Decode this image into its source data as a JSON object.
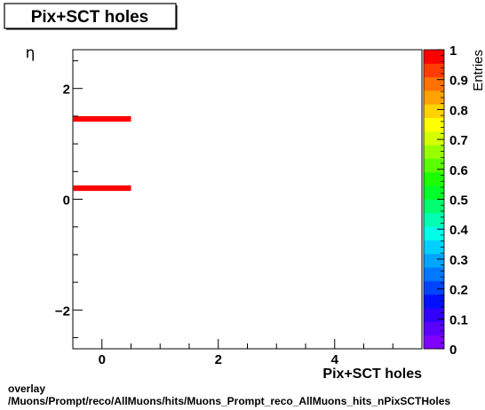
{
  "title": "Pix+SCT holes",
  "footer": {
    "line1": "overlay",
    "line2": "/Muons/Prompt/reco/AllMuons/hits/Muons_Prompt_reco_AllMuons_hits_nPixSCTHoles"
  },
  "chart_data": {
    "type": "heatmap",
    "xlabel": "Pix+SCT holes",
    "ylabel": "η",
    "zlabel": "Entries",
    "xlim": [
      -0.5,
      5.5
    ],
    "ylim": [
      -2.7,
      2.7
    ],
    "zlim": [
      0,
      1
    ],
    "x_ticks": [
      0,
      2,
      4
    ],
    "y_ticks": [
      -2,
      0,
      2
    ],
    "z_ticks": [
      0,
      0.1,
      0.2,
      0.3,
      0.4,
      0.5,
      0.6,
      0.7,
      0.8,
      0.9,
      1
    ],
    "cells": [
      {
        "x": [
          -0.5,
          0.5
        ],
        "y": [
          1.4,
          1.5
        ],
        "z": 1
      },
      {
        "x": [
          -0.5,
          0.5
        ],
        "y": [
          0.15,
          0.25
        ],
        "z": 1
      }
    ],
    "colors": {
      "palette": [
        "#7f00ff",
        "#5a00ff",
        "#3300ff",
        "#0010ff",
        "#0044ff",
        "#0077ff",
        "#00a5ff",
        "#00d0ff",
        "#00ffe8",
        "#00ffb0",
        "#00ff70",
        "#00ff2a",
        "#1cff00",
        "#5aff00",
        "#98ff00",
        "#d3ff00",
        "#ffff00",
        "#ffd200",
        "#ffa200",
        "#ff7100",
        "#ff3c00",
        "#ff0000"
      ],
      "cell": "#ff0000"
    }
  }
}
